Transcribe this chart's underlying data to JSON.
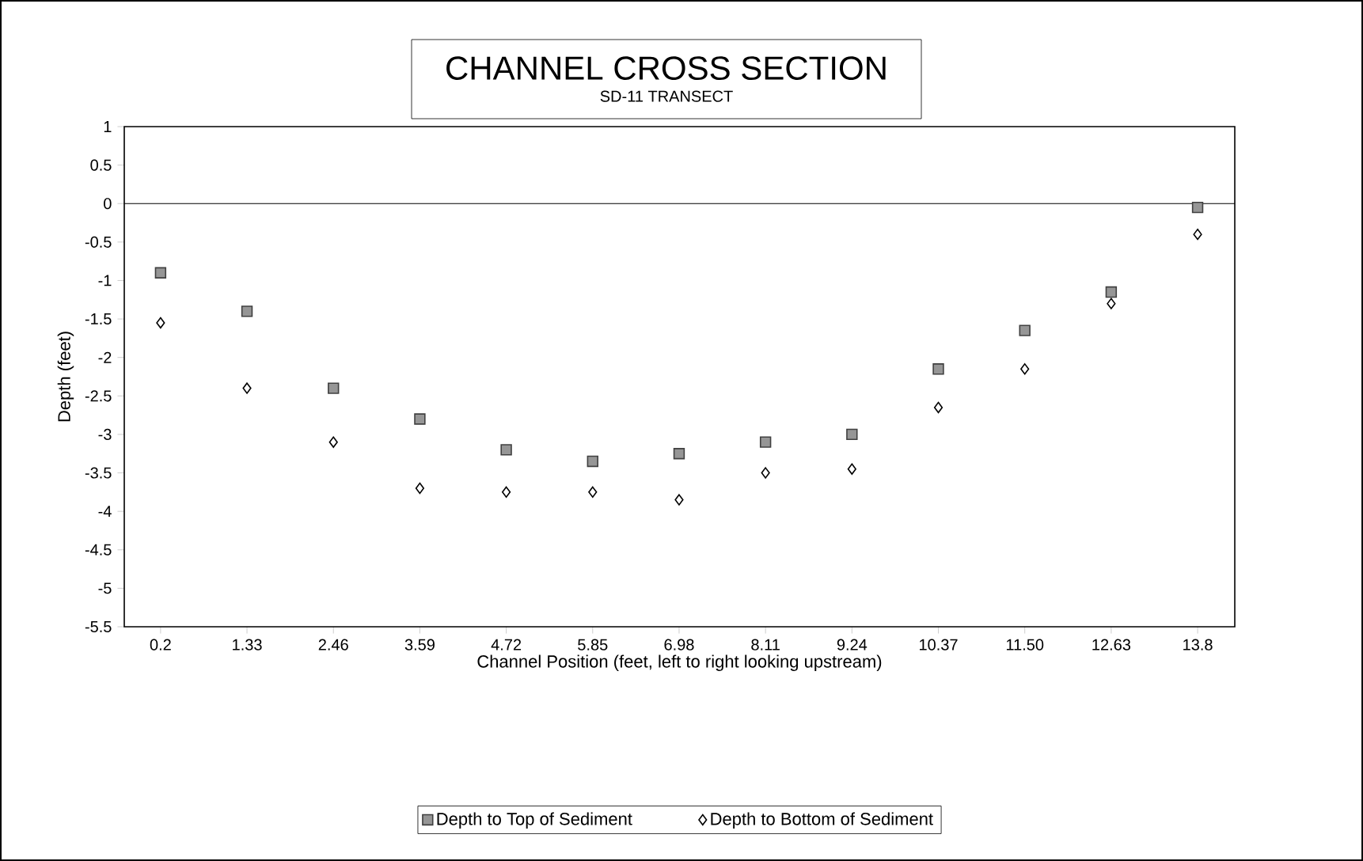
{
  "chart_data": {
    "type": "scatter",
    "title": "CHANNEL CROSS SECTION",
    "subtitle": "SD-11 TRANSECT",
    "xlabel": "Channel Position (feet, left to right looking upstream)",
    "ylabel": "Depth (feet)",
    "categories": [
      "0.2",
      "1.33",
      "2.46",
      "3.59",
      "4.72",
      "5.85",
      "6.98",
      "8.11",
      "9.24",
      "10.37",
      "11.50",
      "12.63",
      "13.8"
    ],
    "ylim": [
      -5.5,
      1
    ],
    "yticks": [
      1,
      0.5,
      0,
      -0.5,
      -1,
      -1.5,
      -2,
      -2.5,
      -3,
      -3.5,
      -4,
      -4.5,
      -5,
      -5.5
    ],
    "series": [
      {
        "name": "Depth to Top of Sediment",
        "color": "#404040",
        "marker": "square",
        "values": [
          -0.9,
          -1.4,
          -2.4,
          -2.8,
          -3.2,
          -3.35,
          -3.25,
          -3.1,
          -3.0,
          -2.15,
          -1.65,
          -1.15,
          -0.05
        ]
      },
      {
        "name": "Depth to Bottom of Sediment",
        "color": "#000000",
        "marker": "diamond",
        "values": [
          -1.55,
          -2.4,
          -3.1,
          -3.7,
          -3.75,
          -3.75,
          -3.85,
          -3.5,
          -3.45,
          -2.65,
          -2.15,
          -1.3,
          -0.4
        ]
      }
    ],
    "ref_lines": [
      {
        "axis": "y",
        "value": 0
      }
    ],
    "legend": "bottom",
    "grid": false
  }
}
